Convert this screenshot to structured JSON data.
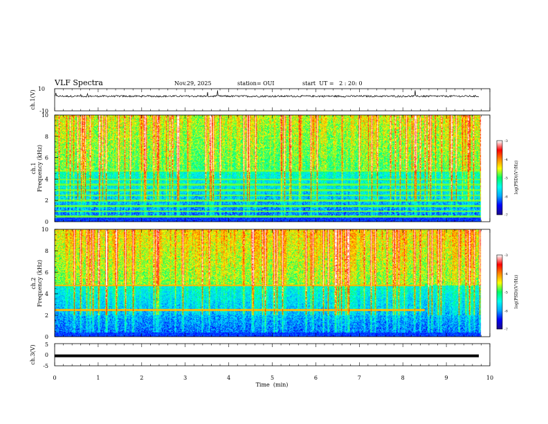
{
  "header": {
    "title": "VLF Spectra",
    "date": "Nov.29, 2025",
    "station": "station= OUI",
    "start_ut": "start  UT =   2 : 20: 0"
  },
  "chart_data": [
    {
      "type": "line",
      "name": "ch.1 waveform",
      "ylabel": "ch.1(V)",
      "ylim": [
        -10,
        10
      ],
      "yticks": [
        "10",
        "-10"
      ],
      "baseline": 3.2,
      "note": "noisy waveform with intermittent spikes"
    },
    {
      "type": "heatmap",
      "name": "ch.1 spectrogram",
      "ylabel": "ch.1\nFrequency (kHz)",
      "ylim": [
        0,
        10
      ],
      "yticks": [
        "0",
        "2",
        "4",
        "6",
        "8",
        "10"
      ],
      "colorbar": {
        "label": "log(PSD)(V²/Hz)",
        "range": [
          -7,
          -3
        ],
        "ticks": [
          "-3",
          "-4",
          "-5",
          "-6",
          "-7"
        ],
        "colors": [
          "#1a0a8c",
          "#0000ff",
          "#00aaff",
          "#00ffee",
          "#00ff66",
          "#ffff00",
          "#ff8800",
          "#ff0000",
          "#ffffff"
        ]
      },
      "bands_khz": [
        0.5,
        1.0,
        1.5,
        2.0,
        2.5,
        3.0,
        3.5,
        4.0,
        4.8
      ],
      "band_end_min": 9.8
    },
    {
      "type": "heatmap",
      "name": "ch.2 spectrogram",
      "ylabel": "ch.2\nFrequency (kHz)",
      "ylim": [
        0,
        10
      ],
      "yticks": [
        "0",
        "2",
        "4",
        "6",
        "8",
        "10"
      ],
      "colorbar": {
        "label": "log(PSD)(V²/Hz)",
        "range": [
          -7,
          -3
        ],
        "ticks": [
          "-3",
          "-4",
          "-5",
          "-6",
          "-7"
        ],
        "colors": [
          "#1a0a8c",
          "#0000ff",
          "#00aaff",
          "#00ffee",
          "#00ff66",
          "#ffff00",
          "#ff8800",
          "#ff0000",
          "#ffffff"
        ]
      },
      "bands_khz": [
        2.5,
        4.8
      ],
      "band_end_min": 8.5
    },
    {
      "type": "line",
      "name": "ch.3 waveform",
      "ylabel": "ch.3(V)",
      "ylim": [
        -5,
        5
      ],
      "yticks": [
        "5",
        "0",
        "-5"
      ],
      "value": -0.5,
      "note": "flat thick line"
    }
  ],
  "x_axis": {
    "xlabel": "Time  (min)",
    "xlim": [
      0,
      10
    ],
    "ticks": [
      "0",
      "1",
      "2",
      "3",
      "4",
      "5",
      "6",
      "7",
      "8",
      "9",
      "10"
    ],
    "data_end_min": 9.8
  }
}
